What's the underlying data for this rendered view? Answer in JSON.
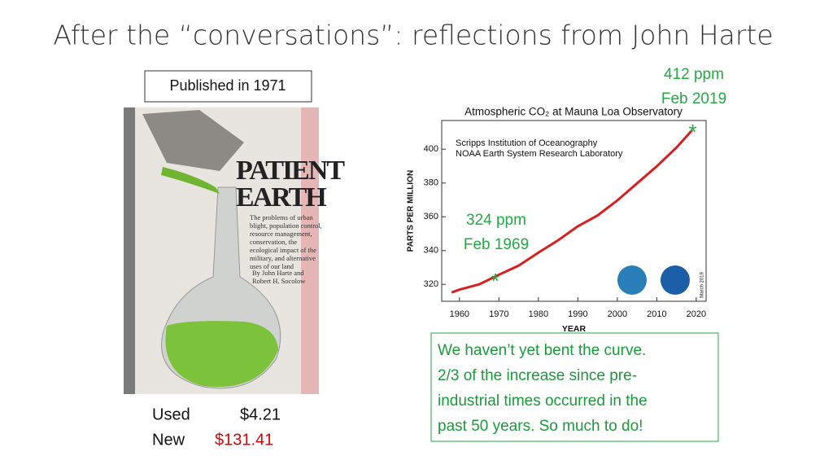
{
  "slide": {
    "title": "After the “conversations”: reflections from John Harte",
    "published": "Published in 1971",
    "prices": {
      "used_label": "Used",
      "used_price": "$4.21",
      "new_label": "New",
      "new_price": "$131.41"
    },
    "note": [
      "We haven’t yet bent the curve.",
      "2/3 of the increase since pre-",
      "industrial times occurred in the",
      "past 50 years. So much to do!"
    ],
    "book": {
      "title": [
        "PATIENT",
        "EARTH"
      ],
      "blurb": [
        "The problems of urban",
        "blight, population control,",
        "resource management,",
        "conservation, the",
        "ecological impact of the",
        "military, and alternative",
        "uses of our land"
      ],
      "authors": [
        "By John Harte and",
        "Robert H. Socolow"
      ]
    }
  },
  "chart_data": {
    "type": "line",
    "title": "Atmospheric CO₂ at Mauna Loa Observatory",
    "subtitle": [
      "Scripps Institution of Oceanography",
      "NOAA Earth System Research Laboratory"
    ],
    "date_note": "March 2019",
    "xlabel": "YEAR",
    "ylabel": "PARTS PER MILLION",
    "x": [
      1958,
      1960,
      1965,
      1970,
      1975,
      1980,
      1985,
      1990,
      1995,
      2000,
      2005,
      2010,
      2015,
      2019
    ],
    "series": [
      {
        "color": "#d62020",
        "values": [
          315.2,
          316.9,
          320.0,
          325.7,
          331.1,
          338.8,
          346.1,
          354.4,
          360.8,
          369.7,
          379.8,
          389.9,
          401.0,
          411.4
        ]
      }
    ],
    "xlim": [
      1955.5,
      2022.5
    ],
    "ylim": [
      310,
      417
    ],
    "xticks": [
      1960,
      1970,
      1980,
      1990,
      2000,
      2010,
      2020
    ],
    "yticks": [
      320,
      340,
      360,
      380,
      400
    ],
    "annotations": [
      {
        "text": [
          "412 ppm",
          "Feb 2019"
        ],
        "x": 2019.1,
        "y": 412,
        "color": "#22aa44"
      },
      {
        "text": [
          "324 ppm",
          "Feb 1969"
        ],
        "x": 1969.1,
        "y": 324,
        "color": "#22aa44"
      }
    ]
  }
}
